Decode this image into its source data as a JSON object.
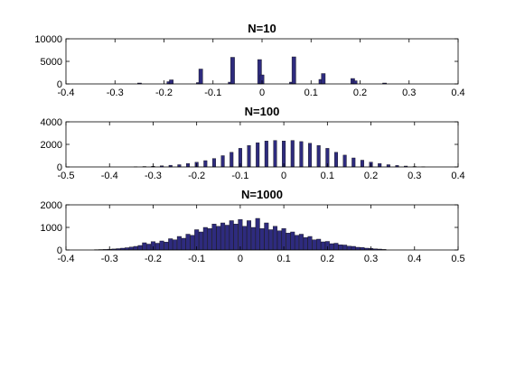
{
  "chart_data": [
    {
      "type": "bar",
      "title": "N=10",
      "xlim": [
        -0.4,
        0.4
      ],
      "ylim": [
        0,
        10000
      ],
      "xticks": [
        -0.4,
        -0.3,
        -0.2,
        -0.1,
        0,
        0.1,
        0.2,
        0.3,
        0.4
      ],
      "xtick_labels": [
        "-0.4",
        "-0.3",
        "-0.2",
        "-0.1",
        "0",
        "0.1",
        "0.2",
        "0.3",
        "0.4"
      ],
      "yticks": [
        0,
        5000,
        10000
      ],
      "ytick_labels": [
        "0",
        "5000",
        "10000"
      ],
      "bar_width": 0.008,
      "x": [
        -0.25,
        -0.19,
        -0.185,
        -0.13,
        -0.125,
        -0.065,
        -0.06,
        -0.005,
        0,
        0.06,
        0.065,
        0.12,
        0.125,
        0.185,
        0.19,
        0.25
      ],
      "values": [
        200,
        500,
        900,
        300,
        3300,
        400,
        5900,
        5400,
        2000,
        400,
        6000,
        1000,
        2300,
        1200,
        700,
        200
      ]
    },
    {
      "type": "bar",
      "title": "N=100",
      "xlim": [
        -0.5,
        0.4
      ],
      "ylim": [
        0,
        4000
      ],
      "xticks": [
        -0.5,
        -0.4,
        -0.3,
        -0.2,
        -0.1,
        0,
        0.1,
        0.2,
        0.3,
        0.4
      ],
      "xtick_labels": [
        "-0.5",
        "-0.4",
        "-0.3",
        "-0.2",
        "-0.1",
        "0",
        "0.1",
        "0.2",
        "0.3",
        "0.4"
      ],
      "yticks": [
        0,
        2000,
        4000
      ],
      "ytick_labels": [
        "0",
        "2000",
        "4000"
      ],
      "bar_width": 0.0075,
      "x": [
        -0.34,
        -0.32,
        -0.3,
        -0.28,
        -0.26,
        -0.24,
        -0.22,
        -0.2,
        -0.18,
        -0.16,
        -0.14,
        -0.12,
        -0.1,
        -0.08,
        -0.06,
        -0.04,
        -0.02,
        0,
        0.02,
        0.04,
        0.06,
        0.08,
        0.1,
        0.12,
        0.14,
        0.16,
        0.18,
        0.2,
        0.22,
        0.24,
        0.26,
        0.28,
        0.3,
        0.32
      ],
      "values": [
        20,
        40,
        60,
        100,
        150,
        200,
        300,
        420,
        560,
        750,
        1000,
        1300,
        1650,
        1900,
        2150,
        2300,
        2350,
        2300,
        2350,
        2250,
        2100,
        1900,
        1650,
        1300,
        1050,
        800,
        600,
        430,
        300,
        200,
        130,
        80,
        40,
        20
      ]
    },
    {
      "type": "bar",
      "title": "N=1000",
      "xlim": [
        -0.4,
        0.5
      ],
      "ylim": [
        0,
        2000
      ],
      "xticks": [
        -0.4,
        -0.3,
        -0.2,
        -0.1,
        0,
        0.1,
        0.2,
        0.3,
        0.4,
        0.5
      ],
      "xtick_labels": [
        "-0.4",
        "-0.3",
        "-0.2",
        "-0.1",
        "0",
        "0.1",
        "0.2",
        "0.3",
        "0.4",
        "0.5"
      ],
      "yticks": [
        0,
        1000,
        2000
      ],
      "ytick_labels": [
        "0",
        "1000",
        "2000"
      ],
      "bar_width": 0.0095,
      "x": [
        -0.33,
        -0.32,
        -0.31,
        -0.3,
        -0.29,
        -0.28,
        -0.27,
        -0.26,
        -0.25,
        -0.24,
        -0.23,
        -0.22,
        -0.21,
        -0.2,
        -0.19,
        -0.18,
        -0.17,
        -0.16,
        -0.15,
        -0.14,
        -0.13,
        -0.12,
        -0.11,
        -0.1,
        -0.09,
        -0.08,
        -0.07,
        -0.06,
        -0.05,
        -0.04,
        -0.03,
        -0.02,
        -0.01,
        0,
        0.01,
        0.02,
        0.03,
        0.04,
        0.05,
        0.06,
        0.07,
        0.08,
        0.09,
        0.1,
        0.11,
        0.12,
        0.13,
        0.14,
        0.15,
        0.16,
        0.17,
        0.18,
        0.19,
        0.2,
        0.21,
        0.22,
        0.23,
        0.24,
        0.25,
        0.26,
        0.27,
        0.28,
        0.29,
        0.3,
        0.31,
        0.32,
        0.33
      ],
      "values": [
        15,
        20,
        25,
        35,
        45,
        60,
        80,
        100,
        130,
        160,
        200,
        320,
        260,
        370,
        300,
        400,
        350,
        500,
        450,
        600,
        520,
        700,
        650,
        900,
        800,
        1000,
        950,
        1150,
        1050,
        1200,
        1100,
        1300,
        1150,
        1350,
        1050,
        1300,
        1000,
        1400,
        950,
        1200,
        900,
        1050,
        850,
        950,
        750,
        800,
        650,
        700,
        550,
        600,
        450,
        480,
        360,
        380,
        280,
        300,
        230,
        220,
        170,
        160,
        120,
        110,
        80,
        70,
        50,
        40,
        25
      ]
    }
  ]
}
